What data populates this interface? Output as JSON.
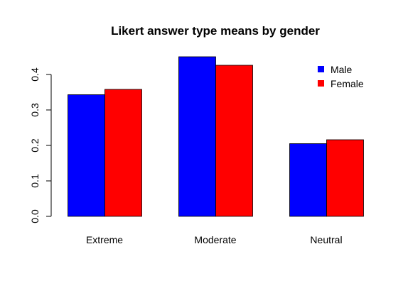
{
  "chart_data": {
    "type": "bar",
    "title": "Likert answer type means by gender",
    "categories": [
      "Extreme",
      "Moderate",
      "Neutral"
    ],
    "series": [
      {
        "name": "Male",
        "values": [
          0.343,
          0.45,
          0.205
        ],
        "color": "#0000ff"
      },
      {
        "name": "Female",
        "values": [
          0.358,
          0.426,
          0.216
        ],
        "color": "#ff0000"
      }
    ],
    "yticks": [
      "0.0",
      "0.1",
      "0.2",
      "0.3",
      "0.4"
    ],
    "ylim": [
      0,
      0.45
    ],
    "xlabel": "",
    "ylabel": "",
    "grid": false,
    "legend_position": "top-right"
  }
}
